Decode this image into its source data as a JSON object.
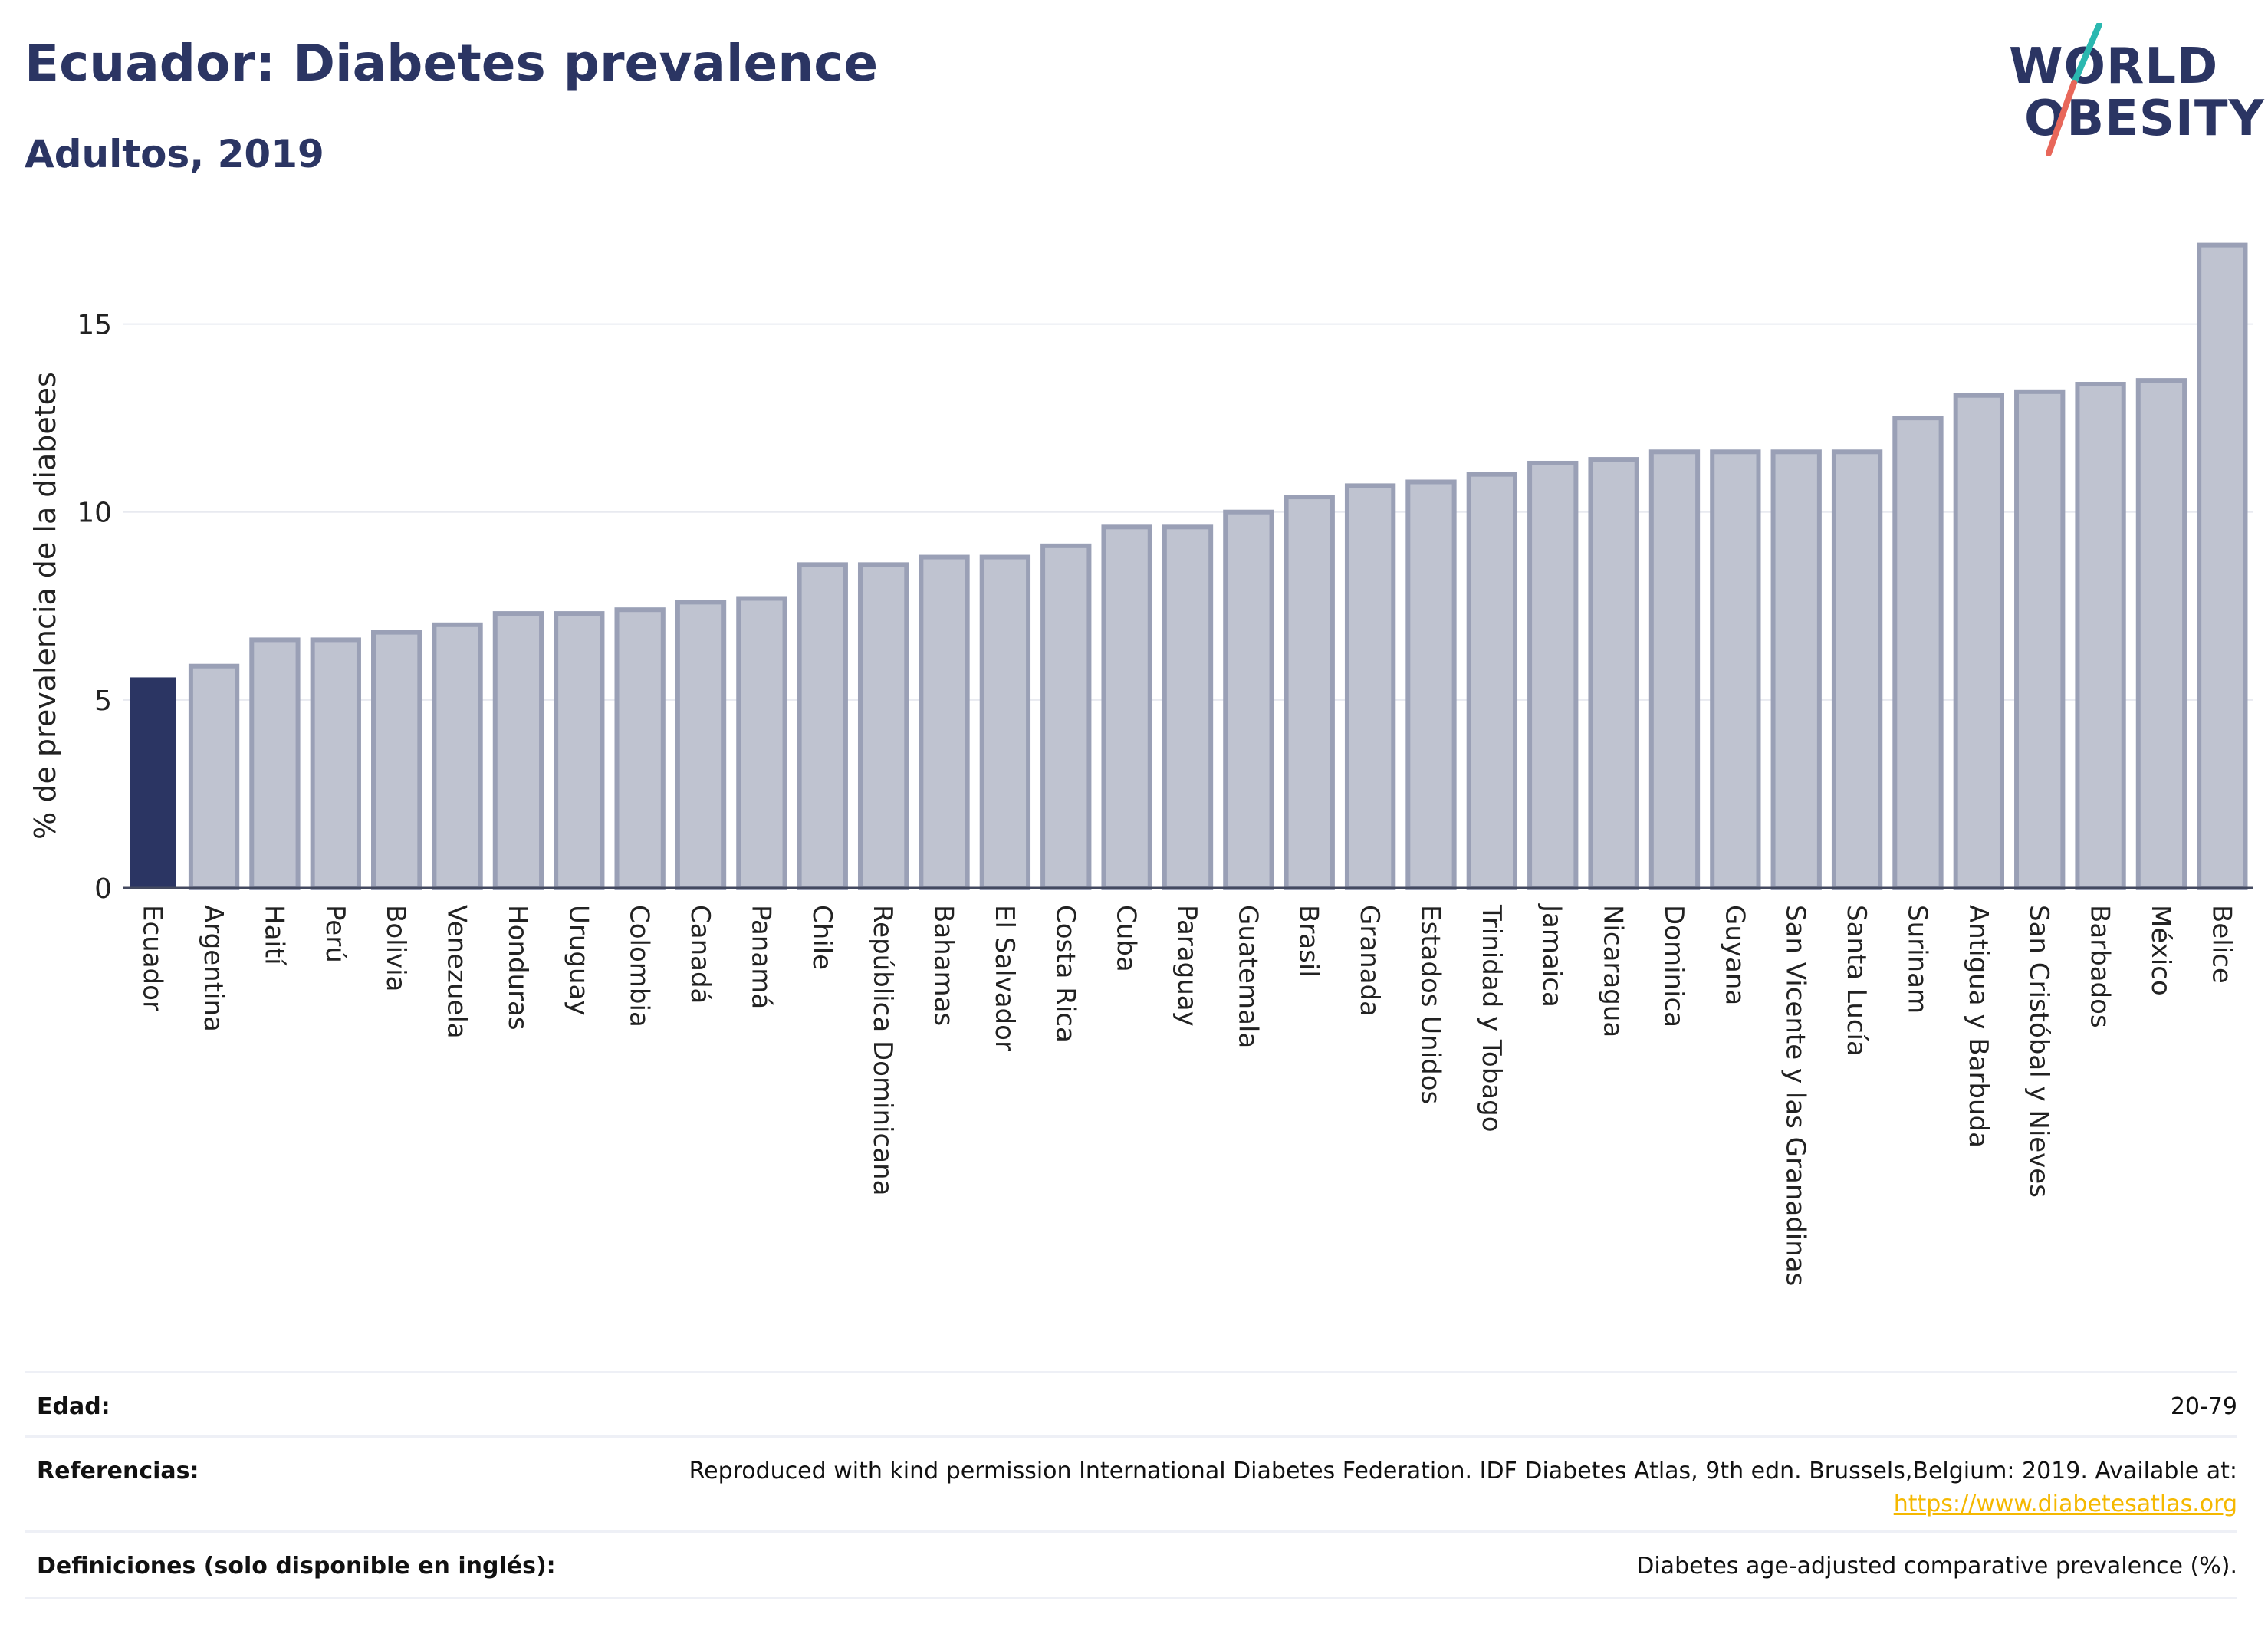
{
  "header": {
    "title": "Ecuador: Diabetes prevalence",
    "subtitle": "Adultos, 2019"
  },
  "logo": {
    "line1": "WORLD",
    "line2": "OBESITY"
  },
  "colors": {
    "highlight": "#2b3563",
    "bar_fill": "#bfc3d0",
    "bar_stroke": "#9aa0b6",
    "grid": "#e8eaf0",
    "logo_teal": "#2bb8b0",
    "logo_coral": "#e8675a"
  },
  "chart_data": {
    "type": "bar",
    "ylabel": "% de prevalencia de la diabetes",
    "xlabel": "",
    "ylim": [
      0,
      17.5
    ],
    "yticks": [
      0,
      5,
      10,
      15
    ],
    "grid": true,
    "highlight": "Ecuador",
    "categories": [
      "Ecuador",
      "Argentina",
      "Haití",
      "Perú",
      "Bolivia",
      "Venezuela",
      "Honduras",
      "Uruguay",
      "Colombia",
      "Canadá",
      "Panamá",
      "Chile",
      "República Dominicana",
      "Bahamas",
      "El Salvador",
      "Costa Rica",
      "Cuba",
      "Paraguay",
      "Guatemala",
      "Brasil",
      "Granada",
      "Estados Unidos",
      "Trinidad y Tobago",
      "Jamaica",
      "Nicaragua",
      "Dominica",
      "Guyana",
      "San Vicente y las Granadinas",
      "Santa Lucía",
      "Surinam",
      "Antigua y Barbuda",
      "San Cristóbal y Nieves",
      "Barbados",
      "México",
      "Belice"
    ],
    "values": [
      5.6,
      5.9,
      6.6,
      6.6,
      6.8,
      7.0,
      7.3,
      7.3,
      7.4,
      7.6,
      7.7,
      8.6,
      8.6,
      8.8,
      8.8,
      9.1,
      9.6,
      9.6,
      10.0,
      10.4,
      10.7,
      10.8,
      11.0,
      11.3,
      11.4,
      11.6,
      11.6,
      11.6,
      11.6,
      12.5,
      13.1,
      13.2,
      13.4,
      13.5,
      17.1
    ]
  },
  "footer": {
    "age_label": "Edad:",
    "age_value": "20-79",
    "ref_label": "Referencias:",
    "ref_value": "Reproduced with kind permission International Diabetes Federation. IDF Diabetes Atlas, 9th edn. Brussels,Belgium: 2019. Available at:",
    "ref_link": "https://www.diabetesatlas.org",
    "def_label": "Definiciones (solo disponible en inglés):",
    "def_value": "Diabetes age-adjusted comparative prevalence (%)."
  }
}
